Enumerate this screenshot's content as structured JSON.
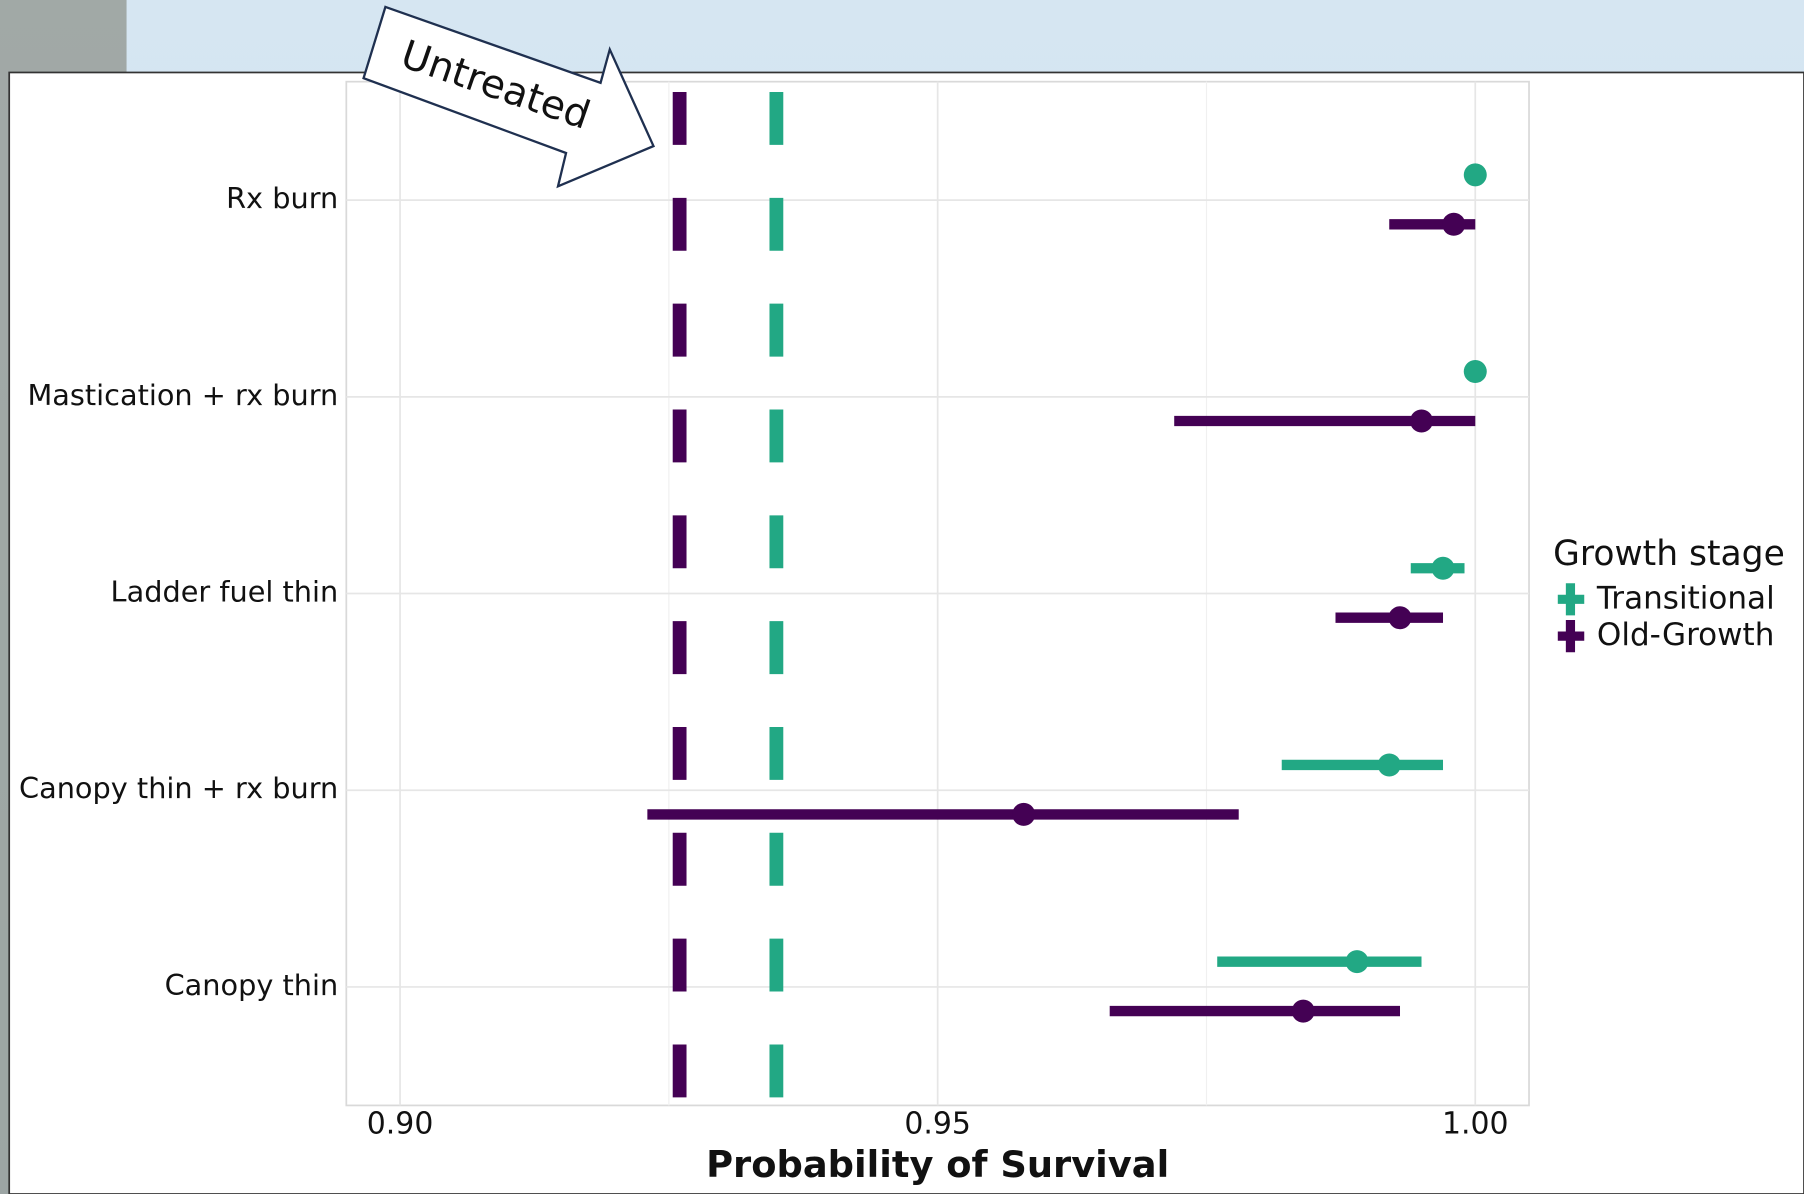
{
  "chart_data": {
    "type": "pointrange",
    "x_label": "Probability of Survival",
    "categories": [
      "Rx burn",
      "Mastication + rx burn",
      "Ladder fuel thin",
      "Canopy thin + rx burn",
      "Canopy thin"
    ],
    "series": [
      {
        "name": "Transitional",
        "color": "#22a884",
        "values": [
          1.0,
          1.0,
          0.997,
          0.992,
          0.989
        ],
        "lower": [
          1.0,
          1.0,
          0.994,
          0.982,
          0.976
        ],
        "upper": [
          1.0,
          1.0,
          0.999,
          0.997,
          0.995
        ],
        "reference": 0.935
      },
      {
        "name": "Old-Growth",
        "color": "#440154",
        "values": [
          0.998,
          0.995,
          0.993,
          0.958,
          0.984
        ],
        "lower": [
          0.992,
          0.972,
          0.987,
          0.923,
          0.966
        ],
        "upper": [
          1.0,
          1.0,
          0.997,
          0.978,
          0.993
        ],
        "reference": 0.926
      }
    ],
    "annotation": "Untreated",
    "legend_title": "Growth stage",
    "legend_position": "right",
    "xlim": [
      0.895,
      1.005
    ],
    "xticks": [
      {
        "value": 0.9,
        "label": "0.90"
      },
      0.95,
      {
        "value": 1.0,
        "label": "1.00"
      }
    ],
    "x_minor_grid": [
      0.925,
      0.975
    ],
    "grid": true
  }
}
